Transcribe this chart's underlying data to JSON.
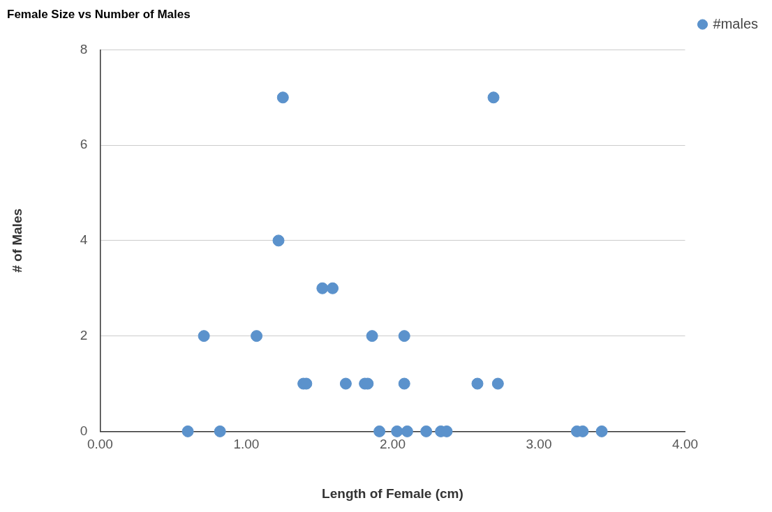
{
  "chart_data": {
    "type": "scatter",
    "title": "Female Size vs Number of Males",
    "xlabel": "Length of Female (cm)",
    "ylabel": "# of Males",
    "series": [
      {
        "name": "#males",
        "color": "#5b92cc",
        "x": [
          1.25,
          2.69,
          1.22,
          1.52,
          1.59,
          0.71,
          1.07,
          1.86,
          2.08,
          1.39,
          1.41,
          1.68,
          1.81,
          1.83,
          2.08,
          2.58,
          2.72,
          0.6,
          0.82,
          1.91,
          2.03,
          2.1,
          2.23,
          2.33,
          2.37,
          3.26,
          3.3,
          3.43
        ],
        "values": [
          7,
          7,
          4,
          3,
          3,
          2,
          2,
          2,
          2,
          1,
          1,
          1,
          1,
          1,
          1,
          1,
          1,
          0,
          0,
          0,
          0,
          0,
          0,
          0,
          0,
          0,
          0,
          0
        ]
      }
    ],
    "xlim": [
      0,
      4
    ],
    "xticks": [
      {
        "value": 0,
        "label": "0.00"
      },
      {
        "value": 1,
        "label": "1.00"
      },
      {
        "value": 2,
        "label": "2.00"
      },
      {
        "value": 3,
        "label": "3.00"
      },
      {
        "value": 4,
        "label": "4.00"
      }
    ],
    "ylim": [
      0,
      8
    ],
    "yticks": [
      0,
      2,
      4,
      6,
      8
    ],
    "grid": "y",
    "legend": "top right",
    "marker": "circle"
  }
}
